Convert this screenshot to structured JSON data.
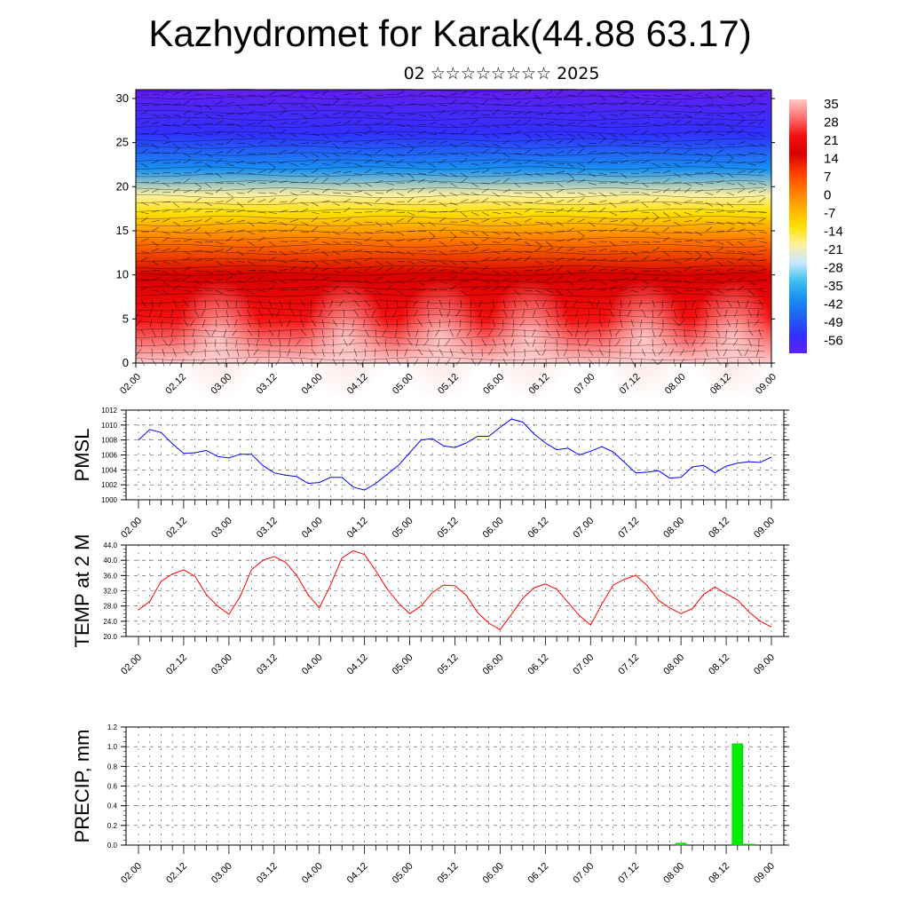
{
  "header": {
    "title": "Kazhydromet for Karak(44.88 63.17)",
    "subtitle": "02 ☆☆☆☆☆☆☆☆ 2025"
  },
  "x_tick_labels": [
    "02.00",
    "02.12",
    "03.00",
    "03.12",
    "04.00",
    "04.12",
    "05.00",
    "05.12",
    "06.00",
    "06.12",
    "07.00",
    "07.12",
    "08.00",
    "08.12",
    "09.00"
  ],
  "chart_data": [
    {
      "type": "heatmap",
      "title": "",
      "xlabel": "",
      "ylabel": "",
      "ylim": [
        0,
        31
      ],
      "y_ticks": [
        0,
        5,
        10,
        15,
        20,
        25,
        30
      ],
      "colorbar": {
        "labels": [
          "35",
          "28",
          "21",
          "14",
          "7",
          "0",
          "-7",
          "-14",
          "-21",
          "-28",
          "-35",
          "-42",
          "-49",
          "-56"
        ],
        "colors": [
          "#ffc8c8",
          "#ff7070",
          "#f51010",
          "#d80000",
          "#ff3c00",
          "#ff7a00",
          "#ffb000",
          "#ffe000",
          "#fff0a0",
          "#c8e8ff",
          "#40c0f0",
          "#1890f0",
          "#2060f0",
          "#3030ff",
          "#6020f0"
        ]
      },
      "temperature_by_height": [
        {
          "height": 0,
          "value": 30
        },
        {
          "height": 5,
          "value": 22
        },
        {
          "height": 10,
          "value": 12
        },
        {
          "height": 14,
          "value": 2
        },
        {
          "height": 17,
          "value": -10
        },
        {
          "height": 19,
          "value": -20
        },
        {
          "height": 22,
          "value": -40
        },
        {
          "height": 26,
          "value": -52
        },
        {
          "height": 31,
          "value": -57
        }
      ]
    },
    {
      "type": "line",
      "ylabel": "PMSL",
      "ylim": [
        1000,
        1012
      ],
      "y_ticks": [
        "1000",
        "1002",
        "1004",
        "1006",
        "1008",
        "1010",
        "1012"
      ],
      "color": "#0000ff",
      "x": [
        0,
        3,
        6,
        9,
        12,
        15,
        18,
        21,
        24,
        27,
        30,
        33,
        36,
        39,
        42,
        45,
        48,
        51,
        54,
        57,
        60,
        63,
        66,
        69,
        72,
        75,
        78,
        81,
        84,
        87,
        90,
        93,
        96,
        99,
        102,
        105,
        108,
        111,
        114,
        117,
        120,
        123,
        126,
        129,
        132,
        135,
        138,
        141,
        144,
        147,
        150,
        153,
        156,
        159,
        162,
        165,
        168
      ],
      "values": [
        1008.0,
        1009.4,
        1009.0,
        1007.5,
        1006.2,
        1006.3,
        1006.6,
        1005.8,
        1005.6,
        1006.1,
        1006.1,
        1004.6,
        1003.6,
        1003.3,
        1003.1,
        1002.2,
        1002.3,
        1003.0,
        1003.0,
        1001.7,
        1001.3,
        1002.2,
        1003.4,
        1004.6,
        1006.3,
        1008.0,
        1008.2,
        1007.2,
        1007.0,
        1007.6,
        1008.5,
        1008.5,
        1009.7,
        1010.8,
        1010.4,
        1008.8,
        1007.6,
        1006.7,
        1006.9,
        1006.0,
        1006.5,
        1007.1,
        1006.4,
        1005.0,
        1003.6,
        1003.7,
        1003.9,
        1002.9,
        1003.0,
        1004.4,
        1004.6,
        1003.6,
        1004.5,
        1004.9,
        1005.1,
        1005.0,
        1005.7
      ]
    },
    {
      "type": "line",
      "ylabel": "TEMP at 2 M",
      "ylim": [
        20.0,
        44.0
      ],
      "y_ticks": [
        "20.0",
        "24.0",
        "28.0",
        "32.0",
        "36.0",
        "40.0",
        "44.0"
      ],
      "color": "#ff0000",
      "x": [
        0,
        3,
        6,
        9,
        12,
        15,
        18,
        21,
        24,
        27,
        30,
        33,
        36,
        39,
        42,
        45,
        48,
        51,
        54,
        57,
        60,
        63,
        66,
        69,
        72,
        75,
        78,
        81,
        84,
        87,
        90,
        93,
        96,
        99,
        102,
        105,
        108,
        111,
        114,
        117,
        120,
        123,
        126,
        129,
        132,
        135,
        138,
        141,
        144,
        147,
        150,
        153,
        156,
        159,
        162,
        165,
        168
      ],
      "values": [
        27.0,
        29.2,
        34.5,
        36.4,
        37.5,
        35.8,
        31.0,
        28.0,
        25.8,
        30.5,
        37.5,
        40.0,
        41.0,
        39.5,
        36.0,
        31.0,
        27.5,
        33.5,
        40.6,
        42.5,
        41.5,
        37.2,
        32.5,
        28.8,
        26.0,
        28.0,
        31.5,
        33.5,
        33.3,
        30.8,
        26.3,
        23.5,
        21.8,
        25.8,
        30.0,
        32.8,
        33.8,
        32.4,
        29.0,
        25.5,
        23.0,
        28.5,
        33.5,
        35.0,
        36.0,
        33.4,
        29.5,
        27.5,
        26.0,
        27.3,
        31.0,
        33.0,
        31.2,
        29.6,
        26.5,
        24.0,
        22.5
      ]
    },
    {
      "type": "bar",
      "ylabel": "PRECIP, mm",
      "ylim": [
        0.0,
        1.2
      ],
      "y_ticks": [
        "0.0",
        "0.2",
        "0.4",
        "0.6",
        "0.8",
        "1.0",
        "1.2"
      ],
      "color": "#00ee00",
      "x": [
        144,
        159,
        162
      ],
      "values": [
        0.02,
        1.03,
        0.01
      ]
    }
  ]
}
